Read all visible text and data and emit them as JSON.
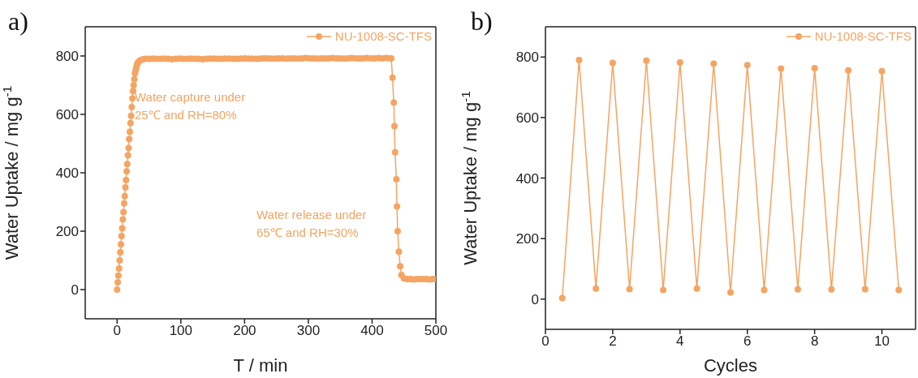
{
  "chart_data": [
    {
      "type": "line",
      "title": "a)",
      "xlabel": "T / min",
      "ylabel": "Water Uptake / mg g$^{-1}$",
      "xlim": [
        -50,
        500
      ],
      "xticks": [
        0,
        100,
        200,
        300,
        400,
        500
      ],
      "ylim": [
        -100,
        900
      ],
      "yticks": [
        0,
        200,
        400,
        600,
        800
      ],
      "legend": "top right",
      "marker": "circle",
      "line_style": "solid",
      "annotations": [
        "Water capture under\n25℃ and RH=80%",
        "Water release under\n65℃ and RH=30%"
      ],
      "series": [
        {
          "name": "NU-1008-SC-TFS",
          "color": "#f5a462",
          "x": [
            0,
            1,
            2,
            3,
            4,
            5,
            6,
            7,
            8,
            9,
            10,
            11,
            12,
            13,
            14,
            15,
            16,
            17,
            18,
            19,
            20,
            21,
            22,
            23,
            24,
            25,
            26,
            27,
            28,
            29,
            30,
            31,
            32,
            33,
            35,
            37,
            40,
            44,
            50,
            56,
            62,
            68,
            74,
            80,
            86,
            92,
            98,
            104,
            110,
            116,
            122,
            128,
            134,
            140,
            146,
            152,
            158,
            164,
            170,
            176,
            182,
            188,
            194,
            200,
            206,
            212,
            218,
            224,
            230,
            236,
            242,
            248,
            254,
            260,
            266,
            272,
            278,
            284,
            290,
            296,
            302,
            308,
            314,
            320,
            326,
            332,
            338,
            344,
            350,
            356,
            362,
            368,
            374,
            380,
            386,
            392,
            398,
            404,
            410,
            416,
            422,
            428,
            430,
            432,
            434,
            435,
            436,
            438,
            439,
            440,
            442,
            444,
            446,
            450,
            455,
            460,
            465,
            470,
            475,
            480,
            485,
            490,
            495,
            500
          ],
          "values": [
            0,
            25,
            48,
            72,
            100,
            128,
            155,
            183,
            210,
            240,
            265,
            295,
            320,
            350,
            375,
            405,
            430,
            460,
            485,
            515,
            540,
            570,
            595,
            625,
            655,
            680,
            700,
            720,
            740,
            750,
            760,
            770,
            775,
            778,
            783,
            786,
            788,
            790,
            790,
            791,
            790,
            790,
            791,
            790,
            789,
            790,
            791,
            790,
            790,
            791,
            790,
            790,
            789,
            790,
            791,
            791,
            790,
            790,
            791,
            791,
            790,
            790,
            791,
            792,
            791,
            791,
            790,
            791,
            792,
            792,
            791,
            791,
            792,
            792,
            791,
            792,
            792,
            791,
            792,
            793,
            792,
            792,
            791,
            792,
            792,
            792,
            793,
            792,
            792,
            791,
            792,
            793,
            792,
            792,
            792,
            793,
            792,
            792,
            793,
            792,
            793,
            792,
            792,
            726,
            640,
            560,
            470,
            378,
            285,
            200,
            130,
            80,
            50,
            38,
            36,
            36,
            35,
            36,
            36,
            36,
            36,
            35,
            36,
            36
          ]
        }
      ]
    },
    {
      "type": "line",
      "title": "b)",
      "xlabel": "Cycles",
      "ylabel": "Water Uptake / mg g$^{-1}$",
      "xlim": [
        0,
        11
      ],
      "xticks": [
        0,
        2,
        4,
        6,
        8,
        10
      ],
      "ylim": [
        -100,
        900
      ],
      "yticks": [
        0,
        200,
        400,
        600,
        800
      ],
      "legend": "top right",
      "marker": "circle",
      "line_style": "solid",
      "series": [
        {
          "name": "NU-1008-SC-TFS",
          "color": "#f5a462",
          "x": [
            0.5,
            1,
            1.5,
            2,
            2.5,
            3,
            3.5,
            4,
            4.5,
            5,
            5.5,
            6,
            6.5,
            7,
            7.5,
            8,
            8.5,
            9,
            9.5,
            10,
            10.5
          ],
          "values": [
            3,
            790,
            35,
            781,
            33,
            788,
            30,
            782,
            35,
            778,
            22,
            773,
            30,
            762,
            32,
            763,
            32,
            756,
            33,
            753,
            30
          ]
        }
      ]
    }
  ]
}
